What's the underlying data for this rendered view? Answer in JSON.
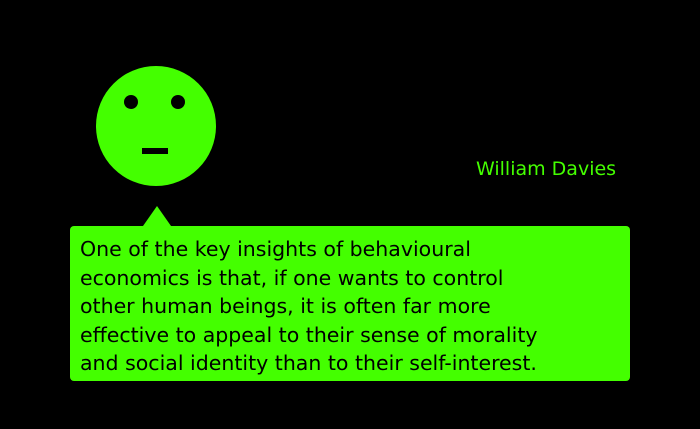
{
  "author": "William Davies",
  "quote": "One of the key insights of behavioural\neconomics is that, if one wants to control\nother human beings, it is often far more\neffective to appeal to their sense of morality\nand social identity than to their self-interest.",
  "colors": {
    "background": "#000000",
    "accent": "#44ff00",
    "text_on_accent": "#000000"
  },
  "icons": {
    "face": "neutral-face-icon"
  }
}
